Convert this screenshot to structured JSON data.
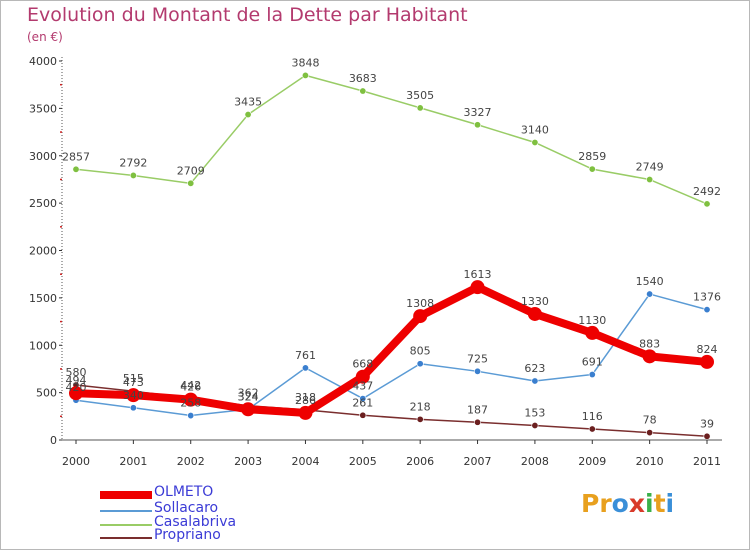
{
  "title": "Evolution du Montant de la Dette par Habitant",
  "subtitle": "(en €)",
  "brand": {
    "name": "Proxiti",
    "letters": [
      "P",
      "r",
      "o",
      "x",
      "i",
      "t",
      "i"
    ],
    "colors": [
      "#e8a01e",
      "#e8a01e",
      "#3a8fd8",
      "#d83a2a",
      "#3ab04a",
      "#e8a01e",
      "#3a8fd8"
    ]
  },
  "chart_data": {
    "type": "line",
    "title": "Evolution du Montant de la Dette par Habitant",
    "subtitle": "(en €)",
    "xlabel": "",
    "ylabel": "",
    "ylim": [
      0,
      4000
    ],
    "yticks": [
      0,
      500,
      1000,
      1500,
      2000,
      2500,
      3000,
      3500,
      4000
    ],
    "categories": [
      "2000",
      "2001",
      "2002",
      "2003",
      "2004",
      "2005",
      "2006",
      "2007",
      "2008",
      "2009",
      "2010",
      "2011"
    ],
    "grid": false,
    "legend_position": "bottom-left",
    "series": [
      {
        "name": "OLMETO",
        "color": "#ee0000",
        "marker_color": "#ee0000",
        "width": 8,
        "values": [
          494,
          473,
          426,
          324,
          286,
          668,
          1308,
          1613,
          1330,
          1130,
          883,
          824
        ],
        "labels": [
          "494",
          "473",
          "426",
          "324",
          "286",
          "668",
          "1308",
          "1613",
          "1330",
          "1130",
          "883",
          "824"
        ]
      },
      {
        "name": "Sollacaro",
        "color": "#5b9bd5",
        "marker_color": "#3a7fcf",
        "width": 1.5,
        "values": [
          420,
          340,
          258,
          324,
          761,
          437,
          805,
          725,
          623,
          691,
          1540,
          1376
        ],
        "labels": [
          "420",
          "340",
          "258",
          "324",
          "761",
          "437",
          "805",
          "725",
          "623",
          "691",
          "1540",
          "1376"
        ]
      },
      {
        "name": "Casalabriva",
        "color": "#99cc66",
        "marker_color": "#7fc040",
        "width": 1.5,
        "values": [
          2857,
          2792,
          2709,
          3435,
          3848,
          3683,
          3505,
          3327,
          3140,
          2859,
          2749,
          2492
        ],
        "labels": [
          "2857",
          "2792",
          "2709",
          "3435",
          "3848",
          "3683",
          "3505",
          "3327",
          "3140",
          "2859",
          "2749",
          "2492"
        ]
      },
      {
        "name": "Propriano",
        "color": "#7a2e2e",
        "marker_color": "#6b1f1f",
        "width": 1.5,
        "values": [
          580,
          515,
          442,
          362,
          318,
          261,
          218,
          187,
          153,
          116,
          78,
          39
        ],
        "labels": [
          "580",
          "515",
          "442",
          "362",
          "318",
          "261",
          "218",
          "187",
          "153",
          "116",
          "78",
          "39"
        ]
      }
    ]
  }
}
